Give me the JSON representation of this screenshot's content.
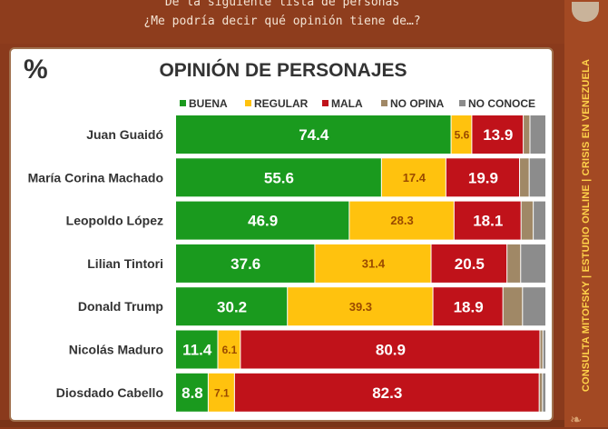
{
  "header": {
    "line1": "De la siguiente lista de personas",
    "line2": "¿Me podría decir qué opinión tiene de…?"
  },
  "sidebar": {
    "text": "CONSULTA MITOFSKY | ESTUDIO ONLINE | CRISIS EN VENEZUELA"
  },
  "chart_data": {
    "type": "bar",
    "orientation": "horizontal-stacked",
    "title": "OPINIÓN DE PERSONAJES",
    "unit_label": "%",
    "legend_position": "top",
    "categories": [
      "Juan Guaidó",
      "María Corina Machado",
      "Leopoldo López",
      "Lilian Tintori",
      "Donald Trump",
      "Nicolás Maduro",
      "Diosdado Cabello"
    ],
    "series": [
      {
        "name": "BUENA",
        "color": "#1a9a1e",
        "values": [
          74.4,
          55.6,
          46.9,
          37.6,
          30.2,
          11.4,
          8.8
        ]
      },
      {
        "name": "REGULAR",
        "color": "#ffc20e",
        "values": [
          5.6,
          17.4,
          28.3,
          31.4,
          39.3,
          6.1,
          7.1
        ]
      },
      {
        "name": "MALA",
        "color": "#c0121a",
        "values": [
          13.9,
          19.9,
          18.1,
          20.5,
          18.9,
          80.9,
          82.3
        ]
      },
      {
        "name": "NO OPINA",
        "color": "#a08866",
        "values": [
          1.8,
          2.6,
          3.3,
          3.7,
          5.3,
          0.8,
          0.9
        ]
      },
      {
        "name": "NO CONOCE",
        "color": "#8c8c8c",
        "values": [
          4.3,
          4.5,
          3.4,
          6.8,
          6.3,
          0.8,
          0.9
        ]
      }
    ],
    "xlim": [
      0,
      100
    ]
  }
}
